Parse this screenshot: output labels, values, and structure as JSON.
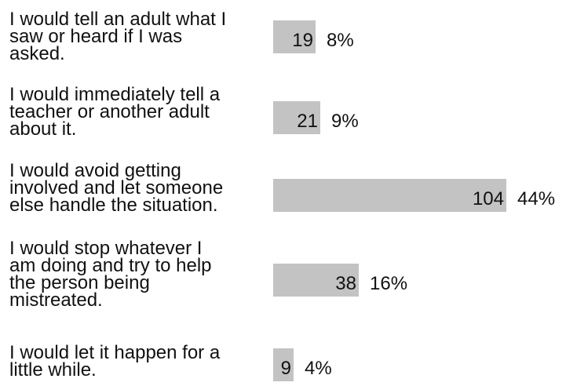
{
  "chart_data": {
    "type": "bar",
    "orientation": "horizontal",
    "categories": [
      "I would tell an adult what I saw or heard if I was asked.",
      "I would immediately tell a teacher or another adult about it.",
      "I would avoid getting involved and let someone else handle the situation.",
      "I would stop whatever I am doing and try to help the person being mistreated.",
      "I would let it happen for a little while."
    ],
    "values": [
      19,
      21,
      104,
      38,
      9
    ],
    "percent_labels": [
      "8%",
      "9%",
      "44%",
      "16%",
      "4%"
    ],
    "bar_color": "#c3c3c3",
    "grid": false,
    "legend": "none"
  }
}
